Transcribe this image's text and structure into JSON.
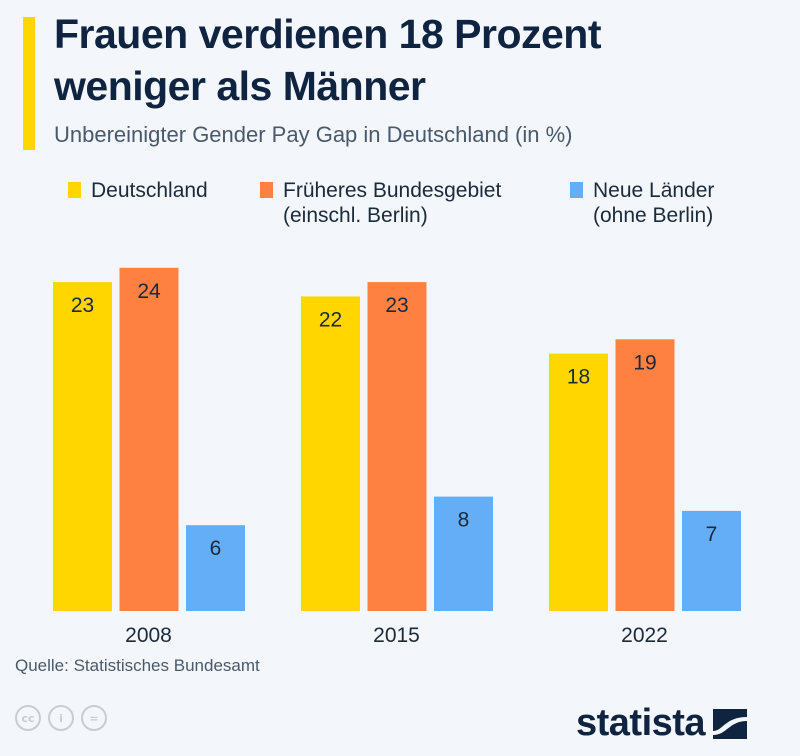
{
  "header": {
    "title_line1": "Frauen verdienen 18 Prozent",
    "title_line2": "weniger als Männer",
    "subtitle": "Unbereinigter Gender Pay Gap in Deutschland (in %)"
  },
  "colors": {
    "accent": "#ffd600",
    "title": "#0f2440"
  },
  "chart_data": {
    "type": "bar",
    "title": "Frauen verdienen 18 Prozent weniger als Männer",
    "subtitle": "Unbereinigter Gender Pay Gap in Deutschland (in %)",
    "categories": [
      "2008",
      "2015",
      "2022"
    ],
    "series": [
      {
        "name": "Deutschland",
        "color": "#ffd600",
        "values": [
          23,
          22,
          18
        ]
      },
      {
        "name": "Früheres Bundesgebiet\n(einschl. Berlin)",
        "color": "#ff8142",
        "values": [
          24,
          23,
          19
        ]
      },
      {
        "name": "Neue Länder\n(ohne Berlin)",
        "color": "#64aef8",
        "values": [
          6,
          8,
          7
        ]
      }
    ],
    "xlabel": "",
    "ylabel": "",
    "ylim": [
      0,
      25
    ],
    "grid": false,
    "legend": "top",
    "data_labels": true
  },
  "footer": {
    "source": "Quelle: Statistisches Bundesamt",
    "cc_icons": [
      "cc-icon",
      "by-icon",
      "nd-icon"
    ],
    "cc_glyphs": [
      "cc",
      "i",
      "="
    ],
    "brand": "statista"
  }
}
